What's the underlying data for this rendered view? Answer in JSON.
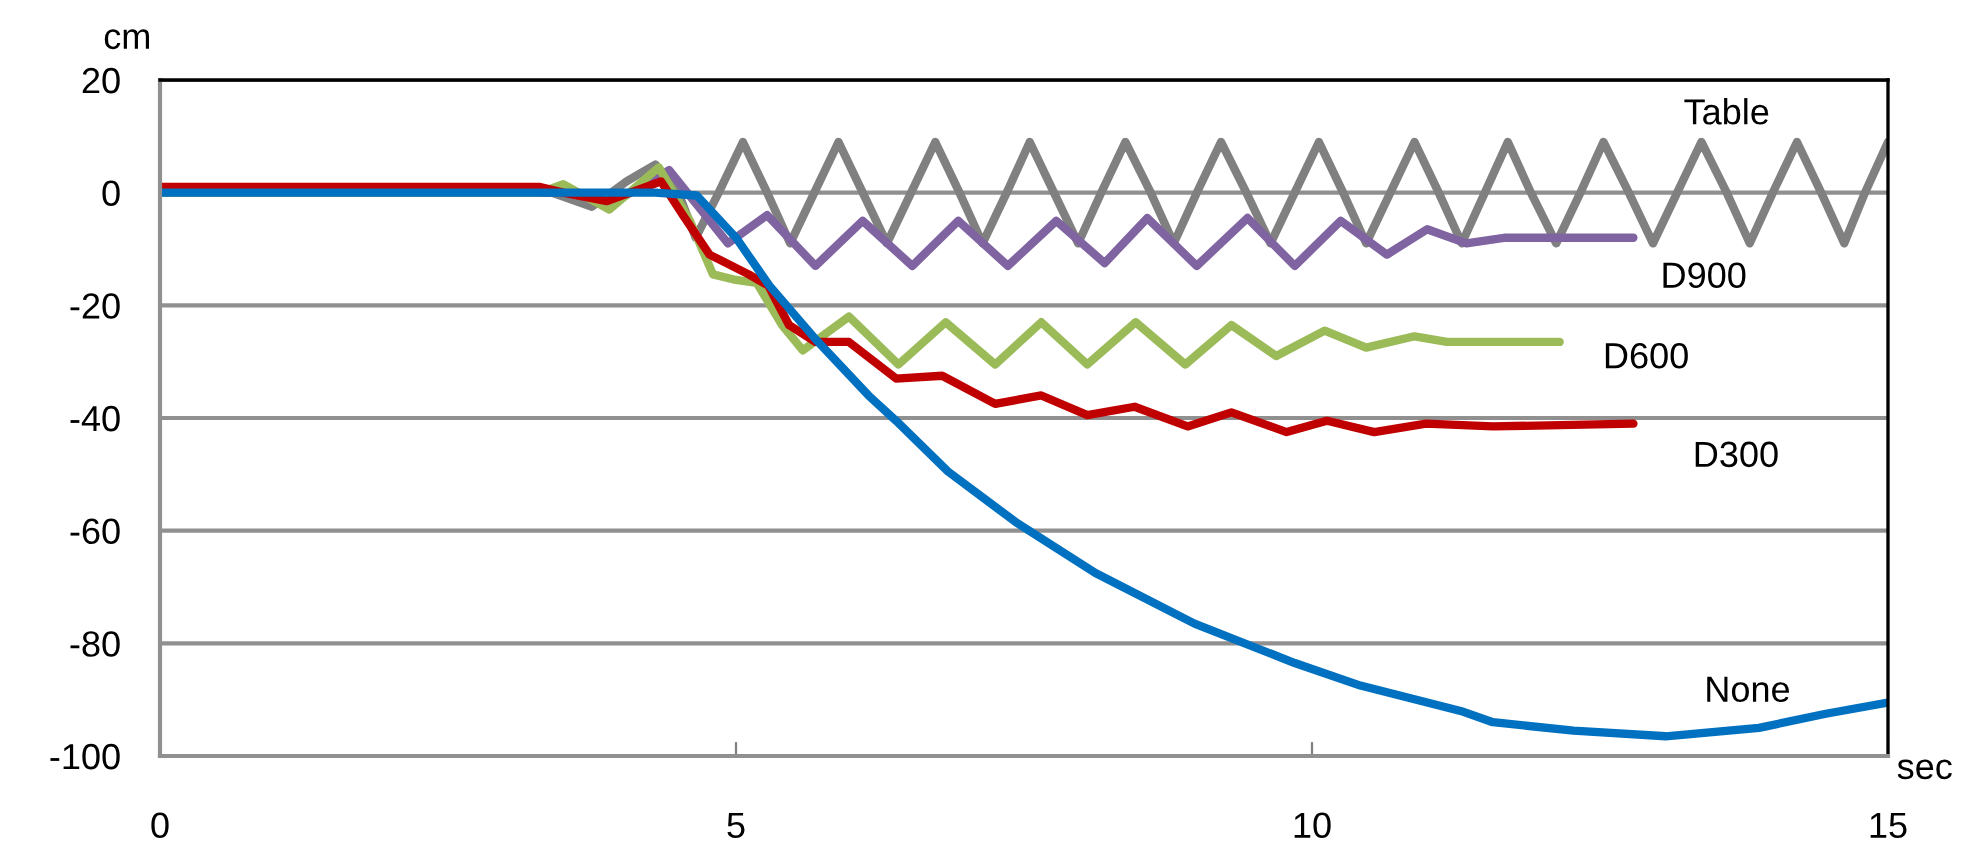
{
  "chart_data": {
    "type": "line",
    "xlabel": "sec",
    "ylabel": "cm",
    "xlim": [
      0,
      15
    ],
    "xticks": [
      0,
      5,
      10,
      15
    ],
    "ylim": [
      -100,
      20
    ],
    "yticks": [
      -100,
      -80,
      -60,
      -40,
      -20,
      0,
      20
    ],
    "grid": "y",
    "legend": false,
    "marker": "none",
    "line_style": "solid",
    "series": [
      {
        "name": "Table",
        "color": "#808080",
        "x": [
          0,
          3.4,
          3.75,
          4.05,
          4.3,
          4.5,
          4.65,
          4.85,
          5.06,
          5.27,
          5.47,
          5.68,
          5.89,
          6.1,
          6.31,
          6.52,
          6.73,
          6.94,
          7.14,
          7.35,
          7.55,
          7.76,
          7.97,
          8.17,
          8.38,
          8.6,
          8.8,
          9.0,
          9.21,
          9.43,
          9.64,
          9.85,
          10.06,
          10.27,
          10.47,
          10.68,
          10.89,
          11.1,
          11.3,
          11.5,
          11.7,
          11.9,
          12.12,
          12.33,
          12.53,
          12.75,
          12.96,
          13.17,
          13.38,
          13.6,
          13.8,
          14.0,
          14.21,
          14.42,
          14.62,
          14.8,
          15.0
        ],
        "values": [
          0,
          0,
          -2.5,
          2,
          5,
          0,
          -8,
          0,
          9,
          0,
          -9,
          0,
          9,
          0,
          -9,
          0,
          9,
          0,
          -9,
          0,
          9,
          0,
          -9,
          0,
          9,
          0,
          -9,
          0,
          9,
          0,
          -9,
          0,
          9,
          0,
          -9,
          0,
          9,
          0,
          -9,
          0,
          9,
          0,
          -9,
          0,
          9,
          0,
          -9,
          0,
          9,
          0,
          -9,
          0,
          9,
          0,
          -9,
          0,
          9
        ]
      },
      {
        "name": "D900",
        "color": "#8064a2",
        "x": [
          0,
          3.5,
          4.0,
          4.42,
          4.93,
          5.27,
          5.69,
          6.1,
          6.53,
          6.93,
          7.36,
          7.78,
          8.2,
          8.57,
          9.0,
          9.44,
          9.85,
          10.25,
          10.65,
          11.0,
          11.34,
          11.68,
          12.27,
          12.79
        ],
        "values": [
          0,
          0,
          -1,
          4,
          -9,
          -4,
          -13,
          -5,
          -13,
          -5,
          -13,
          -5,
          -12.5,
          -4.5,
          -13,
          -4.5,
          -13,
          -5,
          -11,
          -6.5,
          -9,
          -8,
          -8,
          -8
        ]
      },
      {
        "name": "D600",
        "color": "#9bbb59",
        "x": [
          0,
          3.3,
          3.5,
          3.9,
          4.33,
          4.6,
          4.8,
          5.0,
          5.18,
          5.4,
          5.58,
          5.98,
          6.41,
          6.82,
          7.25,
          7.65,
          8.05,
          8.47,
          8.9,
          9.3,
          9.69,
          10.11,
          10.47,
          10.89,
          11.17,
          12.15
        ],
        "values": [
          0,
          0,
          1.5,
          -3,
          4.5,
          -5,
          -14.5,
          -15.5,
          -16,
          -23.5,
          -28,
          -22,
          -30.5,
          -23,
          -30.5,
          -23,
          -30.5,
          -23,
          -30.5,
          -23.5,
          -29,
          -24.5,
          -27.5,
          -25.5,
          -26.5,
          -26.5
        ]
      },
      {
        "name": "D300",
        "color": "#c00000",
        "x": [
          0,
          3.3,
          3.5,
          3.88,
          4.35,
          4.54,
          4.77,
          5.11,
          5.28,
          5.46,
          5.69,
          5.98,
          6.39,
          6.79,
          7.25,
          7.65,
          8.05,
          8.46,
          8.92,
          9.3,
          9.78,
          10.13,
          10.54,
          10.99,
          11.57,
          12.79
        ],
        "values": [
          1,
          1,
          0,
          -1.5,
          2,
          -4,
          -11,
          -14.5,
          -16.5,
          -23.5,
          -26.5,
          -26.5,
          -33,
          -32.5,
          -37.5,
          -36,
          -39.5,
          -38,
          -41.5,
          -39,
          -42.5,
          -40.5,
          -42.5,
          -41,
          -41.5,
          -41
        ]
      },
      {
        "name": "None",
        "color": "#0070c0",
        "x": [
          0,
          4.3,
          4.66,
          5.0,
          5.29,
          5.69,
          6.15,
          6.39,
          6.84,
          7.43,
          8.12,
          8.98,
          9.85,
          10.42,
          10.71,
          11.29,
          11.57,
          12.27,
          13.07,
          13.88,
          14.46,
          15.0
        ],
        "values": [
          0,
          0,
          -0.5,
          -8,
          -16.5,
          -26,
          -36,
          -40.5,
          -49.5,
          -58.5,
          -67.5,
          -76.5,
          -83.5,
          -87.5,
          -89,
          -92,
          -94,
          -95.5,
          -96.5,
          -95,
          -92.5,
          -90.5
        ]
      }
    ]
  }
}
